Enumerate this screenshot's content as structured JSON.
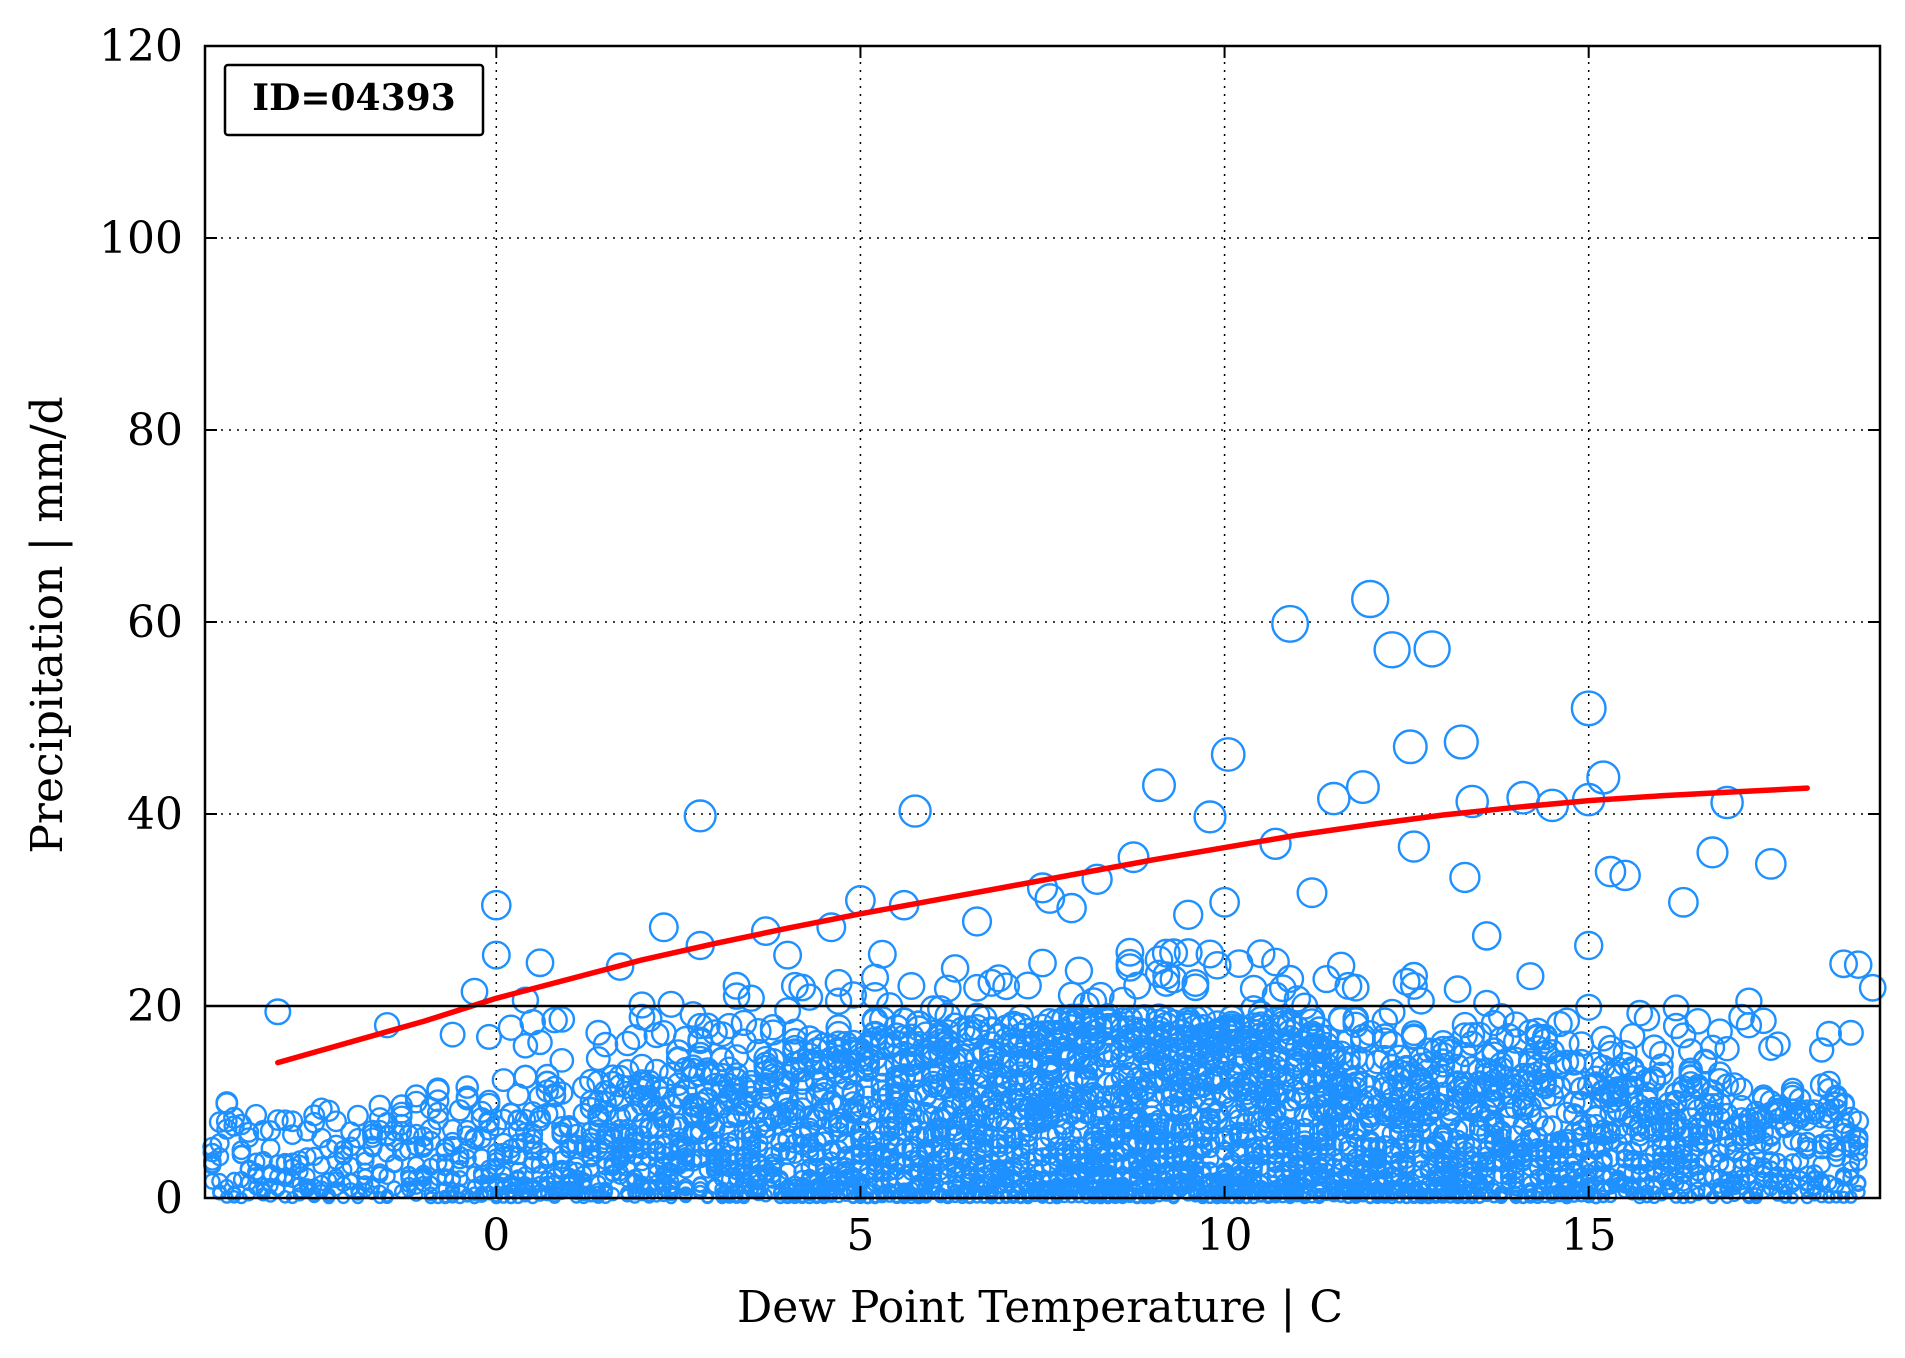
{
  "chart_data": {
    "type": "scatter",
    "title": "",
    "annotation": "ID=04393",
    "xlabel": "Dew Point Temperature | C",
    "ylabel": "Precipitation | mm/d",
    "xlim": [
      -4,
      19
    ],
    "ylim": [
      0,
      120
    ],
    "xticks": [
      0,
      5,
      10,
      15
    ],
    "yticks": [
      0,
      20,
      40,
      60,
      80,
      100,
      120
    ],
    "grid": true,
    "threshold_line": 20,
    "colors": {
      "points": "#1e90ff",
      "fit": "#ff0000",
      "axes": "#000000"
    },
    "series": [
      {
        "type": "scatter",
        "marker": "open-circle, size grows with precipitation",
        "notable_points": [
          [
            -3.0,
            19.4
          ],
          [
            -1.5,
            18.0
          ],
          [
            -0.3,
            21.5
          ],
          [
            0.0,
            30.5
          ],
          [
            0.0,
            25.3
          ],
          [
            0.6,
            24.5
          ],
          [
            1.7,
            24.1
          ],
          [
            2.3,
            28.2
          ],
          [
            2.8,
            39.8
          ],
          [
            2.8,
            26.3
          ],
          [
            3.7,
            27.8
          ],
          [
            4.6,
            28.2
          ],
          [
            5.0,
            31.0
          ],
          [
            5.6,
            30.5
          ],
          [
            5.75,
            40.3
          ],
          [
            7.5,
            32.3
          ],
          [
            7.9,
            30.2
          ],
          [
            8.25,
            33.2
          ],
          [
            8.75,
            35.5
          ],
          [
            9.1,
            43.0
          ],
          [
            9.8,
            39.7
          ],
          [
            10.05,
            46.2
          ],
          [
            10.7,
            36.9
          ],
          [
            10.9,
            59.8
          ],
          [
            11.5,
            41.6
          ],
          [
            11.9,
            42.8
          ],
          [
            12.0,
            62.4
          ],
          [
            12.3,
            57.1
          ],
          [
            12.55,
            47.0
          ],
          [
            12.85,
            57.2
          ],
          [
            13.25,
            47.5
          ],
          [
            13.4,
            41.3
          ],
          [
            14.1,
            41.7
          ],
          [
            14.5,
            40.9
          ],
          [
            15.0,
            41.5
          ],
          [
            15.0,
            51.0
          ],
          [
            15.0,
            26.3
          ],
          [
            15.2,
            43.8
          ],
          [
            15.3,
            34.0
          ],
          [
            15.5,
            33.6
          ],
          [
            16.3,
            30.8
          ],
          [
            16.7,
            36.0
          ],
          [
            16.9,
            41.2
          ],
          [
            17.5,
            34.8
          ],
          [
            18.5,
            24.4
          ],
          [
            18.7,
            24.3
          ],
          [
            18.9,
            21.9
          ],
          [
            18.3,
            17.1
          ],
          [
            17.2,
            20.5
          ],
          [
            16.2,
            19.8
          ],
          [
            13.3,
            33.4
          ],
          [
            12.6,
            36.6
          ],
          [
            11.2,
            31.8
          ],
          [
            10.0,
            30.8
          ],
          [
            9.5,
            29.5
          ],
          [
            6.6,
            28.8
          ],
          [
            7.6,
            31.2
          ],
          [
            8.7,
            25.6
          ],
          [
            4.0,
            25.3
          ],
          [
            5.3,
            25.4
          ],
          [
            3.3,
            22.1
          ],
          [
            2.0,
            20.1
          ],
          [
            0.4,
            20.6
          ],
          [
            14.2,
            23.1
          ],
          [
            13.6,
            27.3
          ]
        ],
        "bulk_description": "dense columns at each 0.1 C step from about -4 to 19 C with values 0-20 mm/d"
      },
      {
        "type": "line",
        "x": [
          -3.0,
          -1.0,
          0.0,
          1.0,
          2.0,
          3.0,
          4.0,
          5.0,
          6.0,
          7.0,
          8.0,
          9.0,
          10.0,
          11.0,
          12.0,
          13.0,
          14.0,
          15.0,
          16.0,
          17.0,
          18.0
        ],
        "y": [
          14.1,
          18.4,
          20.8,
          22.8,
          24.8,
          26.5,
          28.1,
          29.6,
          31.0,
          32.4,
          33.8,
          35.2,
          36.5,
          37.8,
          38.9,
          39.9,
          40.7,
          41.4,
          41.9,
          42.3,
          42.7
        ]
      }
    ]
  }
}
